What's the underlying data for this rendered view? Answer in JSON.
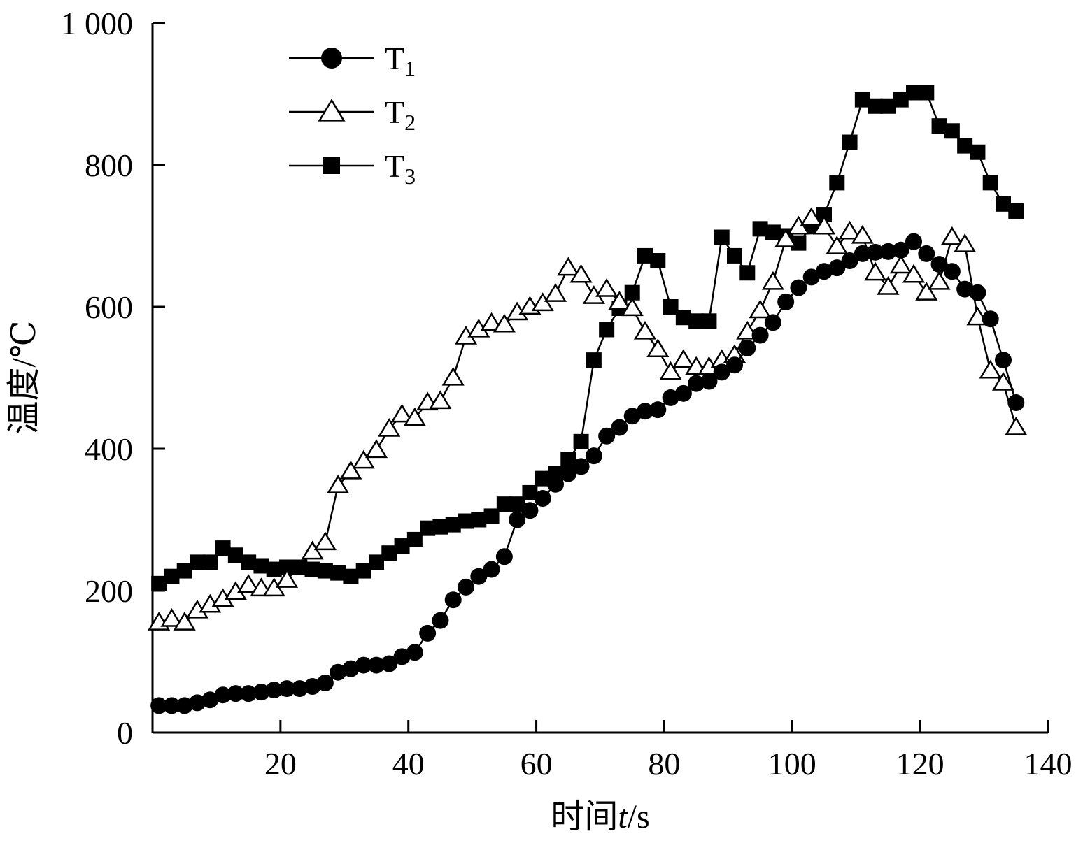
{
  "chart_data": {
    "type": "line",
    "xlabel": {
      "prefix": "时间",
      "var": "t",
      "suffix": "/s"
    },
    "ylabel": "温度/℃",
    "xlim": [
      0,
      140
    ],
    "ylim": [
      0,
      1000
    ],
    "x_ticks": [
      20,
      40,
      60,
      80,
      100,
      120,
      140
    ],
    "y_ticks": [
      0,
      200,
      400,
      600,
      800,
      1000
    ],
    "x_tick_labels": [
      "20",
      "40",
      "60",
      "80",
      "100",
      "120",
      "140"
    ],
    "y_tick_labels": [
      "0",
      "200",
      "400",
      "600",
      "800",
      "1 000"
    ],
    "grid": false,
    "legend_position": "top-left",
    "series": [
      {
        "name": "T1",
        "name_main": "T",
        "name_sub": "1",
        "marker": "filled-circle",
        "x": [
          1,
          3,
          5,
          7,
          9,
          11,
          13,
          15,
          17,
          19,
          21,
          23,
          25,
          27,
          29,
          31,
          33,
          35,
          37,
          39,
          41,
          43,
          45,
          47,
          49,
          51,
          53,
          55,
          57,
          59,
          61,
          63,
          65,
          67,
          69,
          71,
          73,
          75,
          77,
          79,
          81,
          83,
          85,
          87,
          89,
          91,
          93,
          95,
          97,
          99,
          101,
          103,
          105,
          107,
          109,
          111,
          113,
          115,
          117,
          119,
          121,
          123,
          125,
          127,
          129,
          131,
          133,
          135
        ],
        "y": [
          38,
          38,
          38,
          42,
          46,
          53,
          55,
          55,
          57,
          60,
          62,
          62,
          65,
          70,
          85,
          90,
          95,
          95,
          97,
          107,
          113,
          140,
          158,
          187,
          205,
          220,
          230,
          248,
          300,
          313,
          330,
          350,
          365,
          375,
          390,
          418,
          430,
          446,
          453,
          455,
          472,
          478,
          492,
          495,
          508,
          518,
          542,
          560,
          578,
          607,
          627,
          642,
          650,
          655,
          665,
          675,
          677,
          678,
          680,
          692,
          675,
          660,
          650,
          625,
          620,
          583,
          525,
          465
        ]
      },
      {
        "name": "T2",
        "name_main": "T",
        "name_sub": "2",
        "marker": "open-triangle",
        "x": [
          1,
          3,
          5,
          7,
          9,
          11,
          13,
          15,
          17,
          19,
          21,
          25,
          27,
          29,
          31,
          33,
          35,
          37,
          39,
          41,
          43,
          45,
          47,
          49,
          51,
          53,
          55,
          57,
          59,
          61,
          63,
          65,
          67,
          69,
          71,
          73,
          75,
          77,
          79,
          81,
          83,
          85,
          87,
          89,
          91,
          93,
          95,
          97,
          99,
          101,
          103,
          105,
          107,
          109,
          111,
          113,
          115,
          117,
          119,
          121,
          123,
          125,
          127,
          129,
          131,
          133,
          135
        ],
        "y": [
          155,
          160,
          155,
          172,
          180,
          188,
          198,
          208,
          203,
          203,
          215,
          255,
          268,
          348,
          368,
          383,
          398,
          428,
          448,
          443,
          465,
          467,
          500,
          558,
          568,
          577,
          575,
          592,
          600,
          605,
          618,
          655,
          645,
          615,
          625,
          607,
          598,
          565,
          540,
          508,
          525,
          515,
          515,
          525,
          532,
          565,
          595,
          635,
          695,
          713,
          725,
          713,
          685,
          706,
          700,
          648,
          628,
          658,
          645,
          620,
          635,
          698,
          688,
          585,
          510,
          493,
          430
        ]
      },
      {
        "name": "T3",
        "name_main": "T",
        "name_sub": "3",
        "marker": "filled-square",
        "x": [
          1,
          3,
          5,
          7,
          9,
          11,
          13,
          15,
          17,
          19,
          21,
          23,
          25,
          27,
          29,
          31,
          33,
          35,
          37,
          39,
          41,
          43,
          45,
          47,
          49,
          51,
          53,
          55,
          57,
          59,
          61,
          63,
          65,
          67,
          69,
          71,
          73,
          75,
          77,
          79,
          81,
          83,
          85,
          87,
          89,
          91,
          93,
          95,
          97,
          99,
          101,
          103,
          105,
          107,
          109,
          111,
          113,
          115,
          117,
          119,
          121,
          123,
          125,
          127,
          129,
          131,
          133,
          135
        ],
        "y": [
          210,
          220,
          228,
          240,
          240,
          260,
          250,
          240,
          235,
          230,
          233,
          233,
          230,
          228,
          225,
          220,
          228,
          240,
          253,
          263,
          272,
          288,
          290,
          293,
          298,
          300,
          305,
          322,
          322,
          338,
          358,
          365,
          385,
          410,
          525,
          568,
          598,
          620,
          672,
          665,
          600,
          585,
          580,
          580,
          698,
          672,
          648,
          710,
          705,
          700,
          690,
          713,
          730,
          775,
          832,
          892,
          883,
          883,
          892,
          902,
          902,
          855,
          848,
          827,
          818,
          775,
          745,
          735
        ]
      }
    ]
  }
}
